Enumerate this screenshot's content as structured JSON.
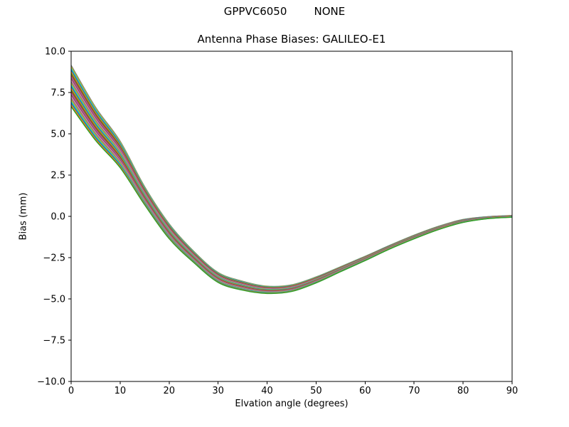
{
  "figure": {
    "suptitle": "GPPVC6050        NONE",
    "title": "Antenna Phase Biases: GALILEO-E1",
    "xlabel": "Elvation angle (degrees)",
    "ylabel": "Bias (mm)"
  },
  "colors": {
    "background": "#ffffff",
    "axes": "#000000",
    "text": "#000000"
  },
  "chart_data": {
    "type": "line",
    "suptitle": "GPPVC6050        NONE",
    "title": "Antenna Phase Biases: GALILEO-E1",
    "xlabel": "Elvation angle (degrees)",
    "ylabel": "Bias (mm)",
    "xlim": [
      0,
      90
    ],
    "ylim": [
      -10,
      10
    ],
    "xtick_values": [
      0,
      10,
      20,
      30,
      40,
      50,
      60,
      70,
      80,
      90
    ],
    "xtick_labels": [
      "0",
      "10",
      "20",
      "30",
      "40",
      "50",
      "60",
      "70",
      "80",
      "90"
    ],
    "ytick_values": [
      10,
      7.5,
      5,
      2.5,
      0,
      -2.5,
      -5,
      -7.5,
      -10
    ],
    "ytick_labels": [
      "10.0",
      "7.5",
      "5.0",
      "2.5",
      "0.0",
      "−2.5",
      "−5.0",
      "−7.5",
      "−10.0"
    ],
    "grid": false,
    "legend": null,
    "x": [
      0,
      5,
      10,
      15,
      20,
      25,
      30,
      35,
      40,
      45,
      50,
      55,
      60,
      65,
      70,
      75,
      80,
      85,
      90
    ],
    "band_center": [
      7.9,
      5.6,
      3.75,
      1.25,
      -0.9,
      -2.45,
      -3.7,
      -4.2,
      -4.45,
      -4.35,
      -3.85,
      -3.2,
      -2.55,
      -1.87,
      -1.25,
      -0.7,
      -0.28,
      -0.08,
      0.0
    ],
    "band_halfwidth": [
      1.25,
      1.0,
      0.8,
      0.55,
      0.45,
      0.34,
      0.3,
      0.27,
      0.22,
      0.2,
      0.18,
      0.15,
      0.13,
      0.11,
      0.11,
      0.1,
      0.09,
      0.06,
      0.05
    ],
    "num_lines": 26,
    "line_colors": [
      "#1f77b4",
      "#ff7f0e",
      "#2ca02c",
      "#d62728",
      "#9467bd",
      "#8c564b",
      "#e377c2",
      "#7f7f7f",
      "#bcbd22",
      "#17becf"
    ]
  }
}
